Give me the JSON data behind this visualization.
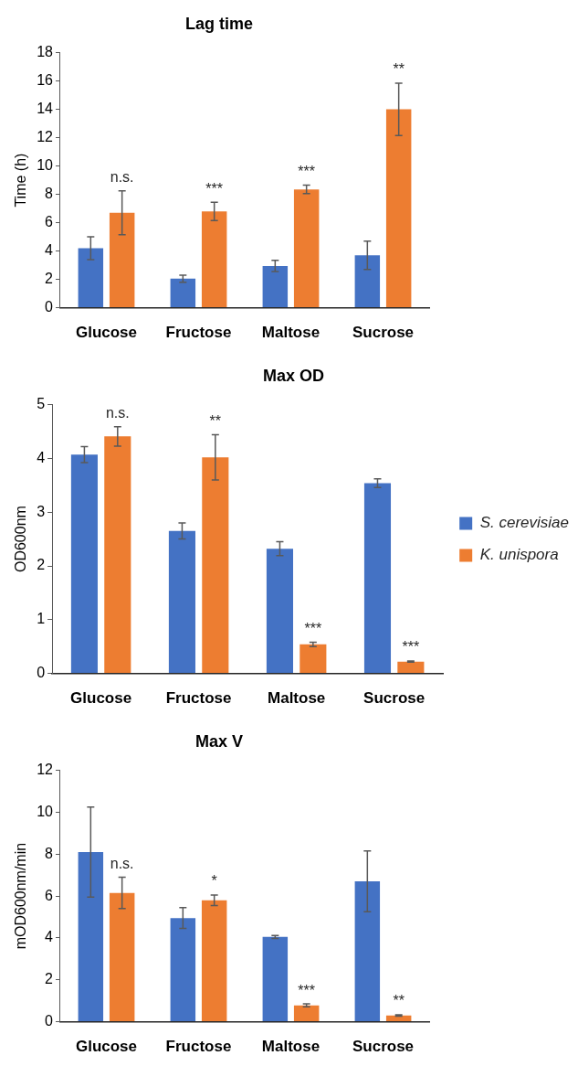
{
  "chart_data": [
    {
      "type": "bar",
      "title": "Lag time",
      "ylabel": "Time (h)",
      "categories": [
        "Glucose",
        "Fructose",
        "Maltose",
        "Sucrose"
      ],
      "ylim": [
        0,
        18
      ],
      "yticks": [
        0,
        2,
        4,
        6,
        8,
        10,
        12,
        14,
        16,
        18
      ],
      "grid": false,
      "legend": false,
      "series": [
        {
          "color": "#4472c4",
          "values": [
            4.2,
            2.05,
            2.95,
            3.7
          ],
          "errors": [
            0.8,
            0.25,
            0.4,
            1.0
          ]
        },
        {
          "color": "#ed7d31",
          "values": [
            6.7,
            6.8,
            8.35,
            14.0
          ],
          "errors": [
            1.55,
            0.65,
            0.3,
            1.85
          ]
        }
      ],
      "annotations": [
        "n.s.",
        "***",
        "***",
        "**"
      ]
    },
    {
      "type": "bar",
      "title": "Max OD",
      "ylabel": "OD600nm",
      "categories": [
        "Glucose",
        "Fructose",
        "Maltose",
        "Sucrose"
      ],
      "ylim": [
        0,
        5
      ],
      "yticks": [
        0,
        1,
        2,
        3,
        4,
        5
      ],
      "grid": false,
      "legend": "right",
      "series": [
        {
          "name": "S. cerevisiae",
          "color": "#4472c4",
          "values": [
            4.07,
            2.65,
            2.32,
            3.54
          ],
          "errors": [
            0.15,
            0.15,
            0.13,
            0.08
          ]
        },
        {
          "name": "K. unispora",
          "color": "#ed7d31",
          "values": [
            4.41,
            4.02,
            0.54,
            0.22
          ],
          "errors": [
            0.18,
            0.42,
            0.04,
            0.01
          ]
        }
      ],
      "annotations": [
        "n.s.",
        "**",
        "***",
        "***"
      ]
    },
    {
      "type": "bar",
      "title": "Max V",
      "ylabel": "mOD600nm/min",
      "categories": [
        "Glucose",
        "Fructose",
        "Maltose",
        "Sucrose"
      ],
      "ylim": [
        0,
        12
      ],
      "yticks": [
        0,
        2,
        4,
        6,
        8,
        10,
        12
      ],
      "grid": false,
      "legend": false,
      "series": [
        {
          "color": "#4472c4",
          "values": [
            8.1,
            4.95,
            4.05,
            6.7
          ],
          "errors": [
            2.15,
            0.5,
            0.07,
            1.45
          ]
        },
        {
          "color": "#ed7d31",
          "values": [
            6.15,
            5.8,
            0.78,
            0.3
          ],
          "errors": [
            0.75,
            0.25,
            0.07,
            0.03
          ]
        }
      ],
      "annotations": [
        "n.s.",
        "*",
        "***",
        "**"
      ]
    }
  ]
}
